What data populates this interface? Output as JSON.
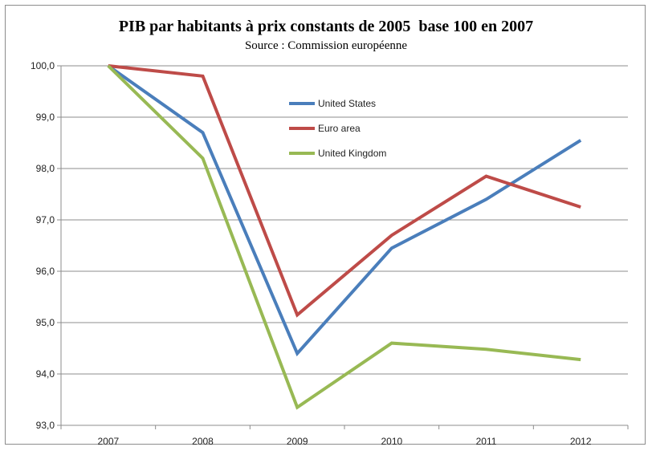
{
  "chart_data": {
    "type": "line",
    "title": "PIB par habitants à prix constants de 2005  base 100 en 2007",
    "subtitle": "Source : Commission européenne",
    "x": [
      "2007",
      "2008",
      "2009",
      "2010",
      "2011",
      "2012"
    ],
    "y_ticks": [
      "93,0",
      "94,0",
      "95,0",
      "96,0",
      "97,0",
      "98,0",
      "99,0",
      "100,0"
    ],
    "ylim": [
      93,
      100
    ],
    "grid": "horizontal",
    "legend_position": "inside-top-center",
    "series": [
      {
        "name": "United States",
        "color": "#4a7ebb",
        "values": [
          100.0,
          98.7,
          94.4,
          96.45,
          97.4,
          98.55
        ]
      },
      {
        "name": "Euro area",
        "color": "#be4b48",
        "values": [
          100.0,
          99.8,
          95.15,
          96.7,
          97.85,
          97.25
        ]
      },
      {
        "name": "United Kingdom",
        "color": "#98b954",
        "values": [
          100.0,
          98.2,
          93.35,
          94.6,
          94.48,
          94.28
        ]
      }
    ]
  }
}
